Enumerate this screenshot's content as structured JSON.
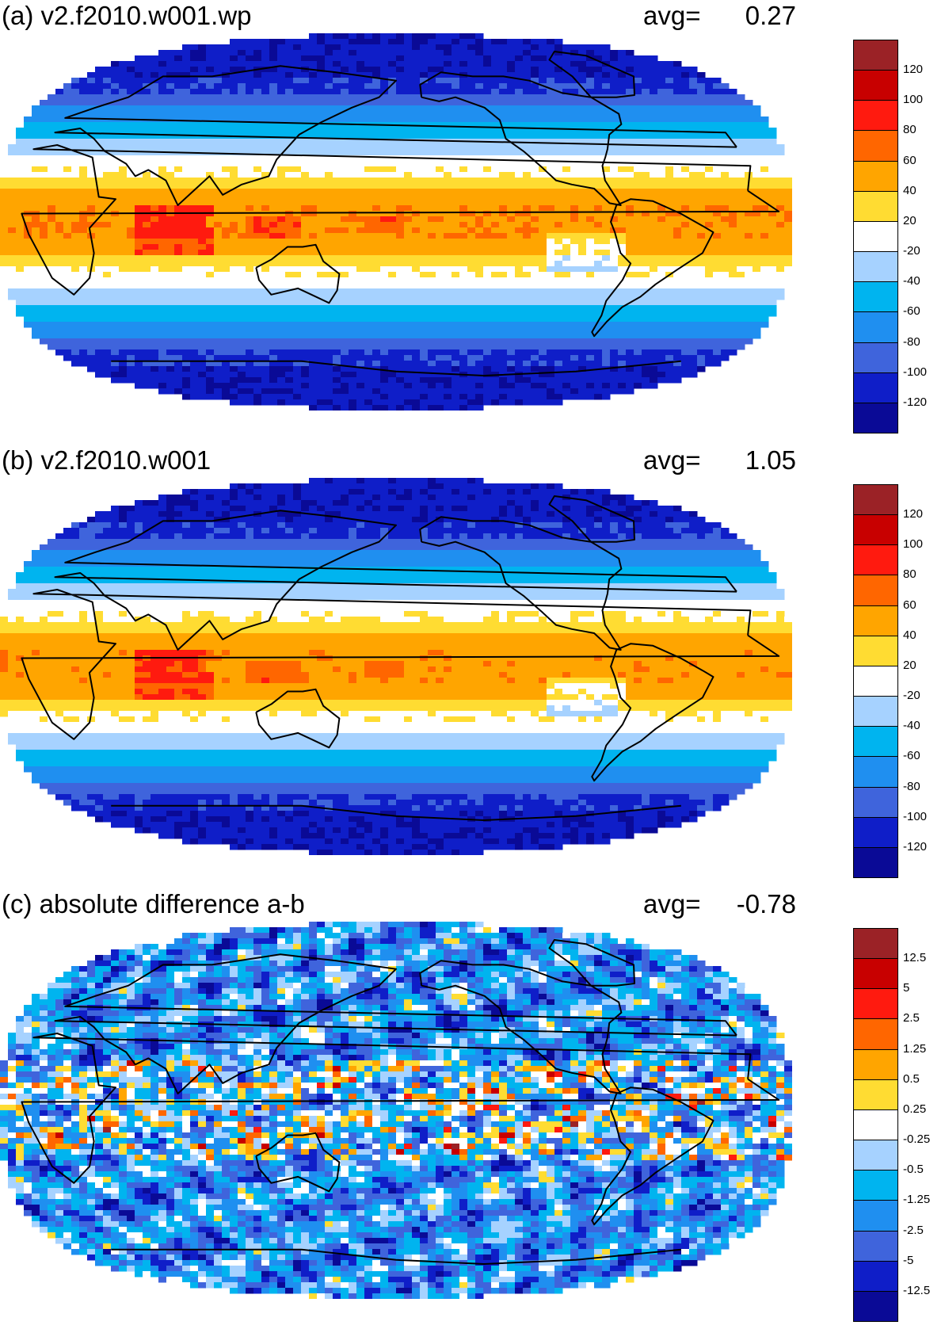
{
  "panels": [
    {
      "title": "(a) v2.f2010.w001.wp",
      "avg_label": "avg=",
      "avg_value": "0.27",
      "colorbar": {
        "colors": [
          "#9b2226",
          "#c80000",
          "#ff1a0f",
          "#ff6600",
          "#ffa500",
          "#ffdc32",
          "#ffffff",
          "#a6d2ff",
          "#00b4ef",
          "#1f8ff0",
          "#3f64dc",
          "#0f1ec8",
          "#0a0a96"
        ],
        "labels": [
          "120",
          "100",
          "80",
          "60",
          "40",
          "20",
          "-20",
          "-40",
          "-60",
          "-80",
          "-100",
          "-120"
        ]
      }
    },
    {
      "title": "(b) v2.f2010.w001",
      "avg_label": "avg=",
      "avg_value": "1.05",
      "colorbar": {
        "colors": [
          "#9b2226",
          "#c80000",
          "#ff1a0f",
          "#ff6600",
          "#ffa500",
          "#ffdc32",
          "#ffffff",
          "#a6d2ff",
          "#00b4ef",
          "#1f8ff0",
          "#3f64dc",
          "#0f1ec8",
          "#0a0a96"
        ],
        "labels": [
          "120",
          "100",
          "80",
          "60",
          "40",
          "20",
          "-20",
          "-40",
          "-60",
          "-80",
          "-100",
          "-120"
        ]
      }
    },
    {
      "title": "(c) absolute difference a-b",
      "avg_label": "avg=",
      "avg_value": "-0.78",
      "colorbar": {
        "colors": [
          "#9b2226",
          "#c80000",
          "#ff1a0f",
          "#ff6600",
          "#ffa500",
          "#ffdc32",
          "#ffffff",
          "#a6d2ff",
          "#00b4ef",
          "#1f8ff0",
          "#3f64dc",
          "#0f1ec8",
          "#0a0a96"
        ],
        "labels": [
          "12.5",
          "5",
          "2.5",
          "1.25",
          "0.5",
          "0.25",
          "-0.25",
          "-0.5",
          "-1.25",
          "-2.5",
          "-5",
          "-12.5"
        ]
      }
    }
  ],
  "map": {
    "projection": "robinson",
    "center_longitude": 180,
    "ocean_color": "#ffffff",
    "coastline_color": "#000000"
  }
}
